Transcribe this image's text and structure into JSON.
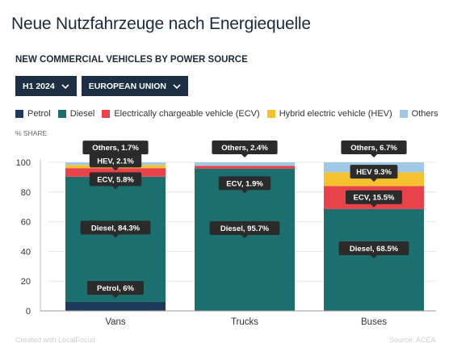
{
  "page_title": "Neue Nutzfahrzeuge nach Energiequelle",
  "chart_title": "NEW COMMERCIAL VEHICLES BY POWER SOURCE",
  "filters": {
    "period": "H1 2024",
    "region": "EUROPEAN UNION"
  },
  "colors": {
    "Petrol": "#1e3a5a",
    "Diesel": "#1b6f6f",
    "ECV": "#e8434b",
    "HEV": "#f5c12f",
    "Others": "#9ec8e3"
  },
  "legend": [
    {
      "key": "Petrol",
      "label": "Petrol"
    },
    {
      "key": "Diesel",
      "label": "Diesel"
    },
    {
      "key": "ECV",
      "label": "Electrically chargeable vehicle (ECV)"
    },
    {
      "key": "HEV",
      "label": "Hybrid electric vehicle (HEV)"
    },
    {
      "key": "Others",
      "label": "Others"
    }
  ],
  "footer": {
    "left": "Created with LocalFocus",
    "right": "Source: ACEA"
  },
  "chart_data": {
    "type": "bar",
    "stacked": true,
    "ylabel": "% SHARE",
    "ylim": [
      0,
      100
    ],
    "yticks": [
      0,
      20,
      40,
      60,
      80,
      100
    ],
    "grid": true,
    "legend_position": "top",
    "categories": [
      "Vans",
      "Trucks",
      "Buses"
    ],
    "series": [
      {
        "key": "Petrol",
        "name": "Petrol",
        "values": [
          6,
          0,
          0
        ]
      },
      {
        "key": "Diesel",
        "name": "Diesel",
        "values": [
          84.3,
          95.7,
          68.5
        ]
      },
      {
        "key": "ECV",
        "name": "ECV",
        "values": [
          5.8,
          1.9,
          15.5
        ]
      },
      {
        "key": "HEV",
        "name": "HEV",
        "values": [
          2.1,
          0,
          9.3
        ]
      },
      {
        "key": "Others",
        "name": "Others",
        "values": [
          1.7,
          2.4,
          6.7
        ]
      }
    ],
    "annotations": [
      {
        "category": "Vans",
        "series": "Petrol",
        "text": "Petrol, 6%"
      },
      {
        "category": "Vans",
        "series": "Diesel",
        "text": "Diesel, 84.3%"
      },
      {
        "category": "Vans",
        "series": "ECV",
        "text": "ECV, 5.8%"
      },
      {
        "category": "Vans",
        "series": "HEV",
        "text": "HEV, 2.1%"
      },
      {
        "category": "Vans",
        "series": "Others",
        "text": "Others, 1.7%"
      },
      {
        "category": "Trucks",
        "series": "Diesel",
        "text": "Diesel, 95.7%"
      },
      {
        "category": "Trucks",
        "series": "ECV",
        "text": "ECV, 1.9%"
      },
      {
        "category": "Trucks",
        "series": "Others",
        "text": "Others, 2.4%"
      },
      {
        "category": "Buses",
        "series": "Diesel",
        "text": "Diesel, 68.5%"
      },
      {
        "category": "Buses",
        "series": "ECV",
        "text": "ECV, 15.5%"
      },
      {
        "category": "Buses",
        "series": "HEV",
        "text": "HEV 9.3%"
      },
      {
        "category": "Buses",
        "series": "Others",
        "text": "Others, 6.7%"
      }
    ]
  }
}
